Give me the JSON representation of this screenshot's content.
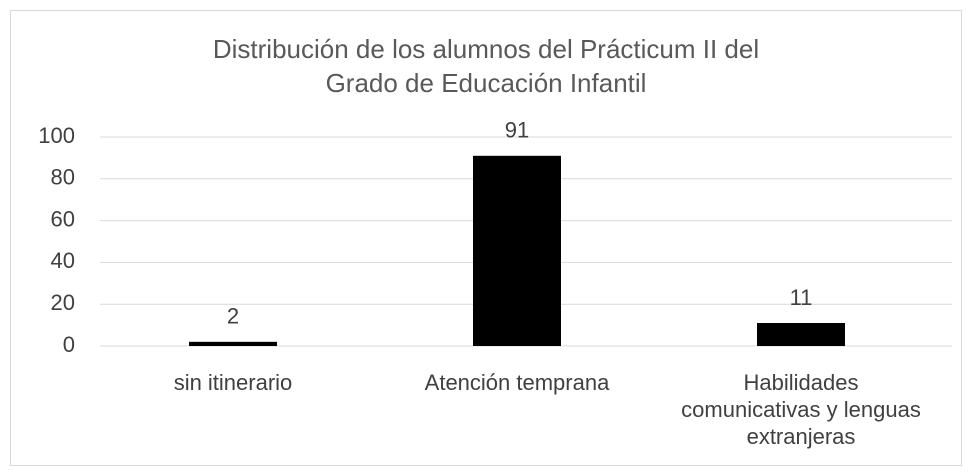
{
  "chart_data": {
    "type": "bar",
    "title": "Distribución de los alumnos del Prácticum II del Grado de Educación Infantil",
    "categories": [
      "sin itinerario",
      "Atención temprana",
      "Habilidades comunicativas y lenguas extranjeras"
    ],
    "values": [
      2,
      91,
      11
    ],
    "color": "#000000",
    "ylim": [
      0,
      100
    ],
    "yticks": [
      0,
      20,
      40,
      60,
      80,
      100
    ],
    "grid": true
  }
}
